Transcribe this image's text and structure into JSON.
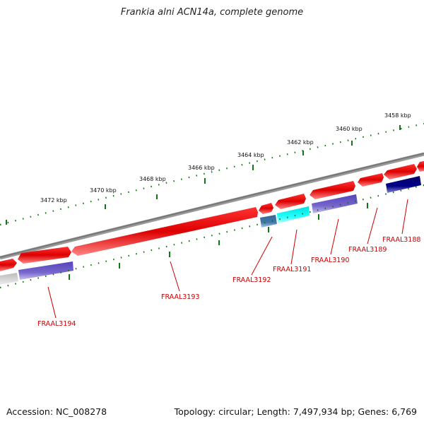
{
  "title": "Frankia alni ACN14a, complete genome",
  "footer": {
    "accession": "Accession: NC_008278",
    "summary": "Topology: circular; Length: 7,497,934 bp; Genes: 6,769"
  },
  "colors": {
    "backbone": "#808080",
    "forward_gene": "#ee0000",
    "blast_hit_purple": "#7766cc",
    "blast_hit_navy": "#000077",
    "blast_hit_cyan": "#11eeee",
    "blast_hit_steel": "#4477aa",
    "blast_hit_gray": "#cccccc",
    "tick_marks": "#117711",
    "label_text": "#cc0000"
  },
  "ruler": {
    "tick_labels": [
      "3458 kbp",
      "3460 kbp",
      "3462 kbp",
      "3464 kbp",
      "3466 kbp",
      "3468 kbp",
      "3470 kbp",
      "3472 kbp"
    ]
  },
  "genes": [
    {
      "id": "FRAAL3188",
      "label": "FRAAL3188"
    },
    {
      "id": "FRAAL3189",
      "label": "FRAAL3189"
    },
    {
      "id": "FRAAL3190",
      "label": "FRAAL3190"
    },
    {
      "id": "FRAAL3191",
      "label": "FRAAL3191"
    },
    {
      "id": "FRAAL3192",
      "label": "FRAAL3192"
    },
    {
      "id": "FRAAL3193",
      "label": "FRAAL3193"
    },
    {
      "id": "FRAAL3194",
      "label": "FRAAL3194"
    }
  ]
}
